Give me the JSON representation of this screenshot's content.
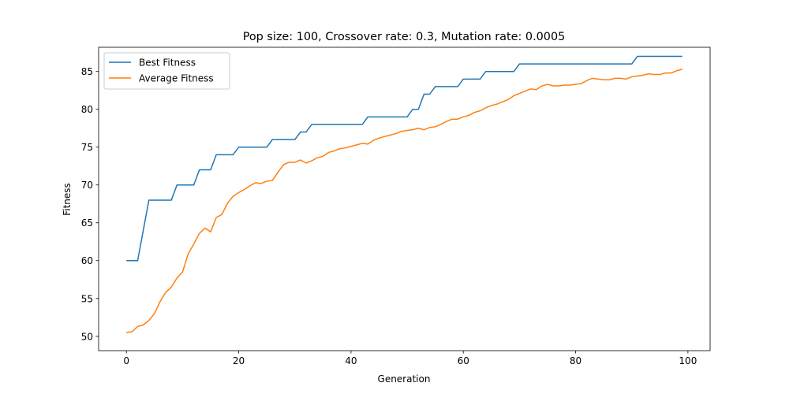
{
  "chart_data": {
    "type": "line",
    "title": "Pop size: 100, Crossover rate: 0.3, Mutation rate: 0.0005",
    "xlabel": "Generation",
    "ylabel": "Fitness",
    "xlim": [
      -4.95,
      103.95
    ],
    "ylim": [
      48.1,
      88.2
    ],
    "xticks": [
      0,
      20,
      40,
      60,
      80,
      100
    ],
    "yticks": [
      50,
      55,
      60,
      65,
      70,
      75,
      80,
      85
    ],
    "legend_position": "upper-left",
    "grid": false,
    "series": [
      {
        "name": "Best Fitness",
        "color": "#1f77b4",
        "values": [
          60,
          60,
          60,
          64,
          68,
          68,
          68,
          68,
          68,
          70,
          70,
          70,
          70,
          72,
          72,
          72,
          74,
          74,
          74,
          74,
          75,
          75,
          75,
          75,
          75,
          75,
          76,
          76,
          76,
          76,
          76,
          77,
          77,
          78,
          78,
          78,
          78,
          78,
          78,
          78,
          78,
          78,
          78,
          79,
          79,
          79,
          79,
          79,
          79,
          79,
          79,
          80,
          80,
          82,
          82,
          83,
          83,
          83,
          83,
          83,
          84,
          84,
          84,
          84,
          85,
          85,
          85,
          85,
          85,
          85,
          86,
          86,
          86,
          86,
          86,
          86,
          86,
          86,
          86,
          86,
          86,
          86,
          86,
          86,
          86,
          86,
          86,
          86,
          86,
          86,
          86,
          87,
          87,
          87,
          87,
          87,
          87,
          87,
          87,
          87
        ]
      },
      {
        "name": "Average Fitness",
        "color": "#ff7f0e",
        "values": [
          50.5,
          50.6,
          51.3,
          51.5,
          52.1,
          53.0,
          54.6,
          55.8,
          56.5,
          57.7,
          58.5,
          60.9,
          62.2,
          63.6,
          64.3,
          63.8,
          65.7,
          66.1,
          67.6,
          68.5,
          69.0,
          69.4,
          69.9,
          70.3,
          70.2,
          70.5,
          70.6,
          71.7,
          72.7,
          73.0,
          73.0,
          73.3,
          72.9,
          73.2,
          73.6,
          73.8,
          74.3,
          74.5,
          74.8,
          74.9,
          75.1,
          75.3,
          75.5,
          75.4,
          75.9,
          76.2,
          76.4,
          76.6,
          76.8,
          77.1,
          77.2,
          77.3,
          77.5,
          77.3,
          77.6,
          77.7,
          78.0,
          78.4,
          78.7,
          78.7,
          79.0,
          79.2,
          79.6,
          79.8,
          80.2,
          80.5,
          80.7,
          81.0,
          81.3,
          81.8,
          82.1,
          82.4,
          82.7,
          82.6,
          83.1,
          83.3,
          83.1,
          83.1,
          83.2,
          83.2,
          83.3,
          83.4,
          83.8,
          84.1,
          84.0,
          83.9,
          83.9,
          84.1,
          84.1,
          84.0,
          84.3,
          84.4,
          84.5,
          84.7,
          84.6,
          84.6,
          84.8,
          84.8,
          85.1,
          85.3
        ]
      }
    ]
  }
}
